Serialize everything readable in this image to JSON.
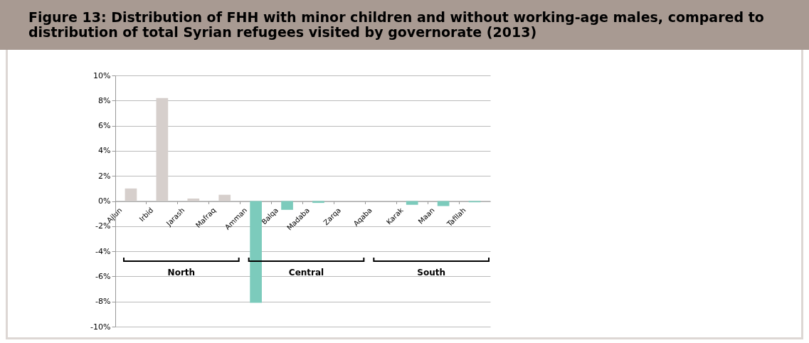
{
  "chart_data": {
    "type": "bar",
    "title": "Figure 13: Distribution of FHH with minor children and without working-age males, compared to distribution of total Syrian refugees visited by governorate (2013)",
    "categories": [
      "Ajlun",
      "Irbid",
      "Jarash",
      "Mafraq",
      "Amman",
      "Balqa",
      "Madaba",
      "Zarqa",
      "Aqaba",
      "Karak",
      "Maan",
      "Tafilah"
    ],
    "values": [
      1.0,
      8.2,
      0.2,
      0.5,
      -8.1,
      -0.7,
      -0.15,
      0,
      0,
      -0.3,
      -0.4,
      -0.1
    ],
    "colors": [
      "#d6cfcc",
      "#d6cfcc",
      "#d6cfcc",
      "#d6cfcc",
      "#7ccbbc",
      "#7ccbbc",
      "#7ccbbc",
      "#7ccbbc",
      "#7ccbbc",
      "#7ccbbc",
      "#7ccbbc",
      "#7ccbbc"
    ],
    "ylim": [
      -10,
      10
    ],
    "yticks": [
      {
        "value": -10,
        "label": "-10%"
      },
      {
        "value": -8,
        "label": "-8%"
      },
      {
        "value": -6,
        "label": "-6%"
      },
      {
        "value": -4,
        "label": "-4%"
      },
      {
        "value": -2,
        "label": "-2%"
      },
      {
        "value": 0,
        "label": "0%"
      },
      {
        "value": 2,
        "label": "2%"
      },
      {
        "value": 4,
        "label": "4%"
      },
      {
        "value": 6,
        "label": "6%"
      },
      {
        "value": 8,
        "label": "8%"
      },
      {
        "value": 10,
        "label": "10%"
      }
    ],
    "annotations": [
      "North",
      "Central",
      "South"
    ],
    "grid": "y"
  }
}
